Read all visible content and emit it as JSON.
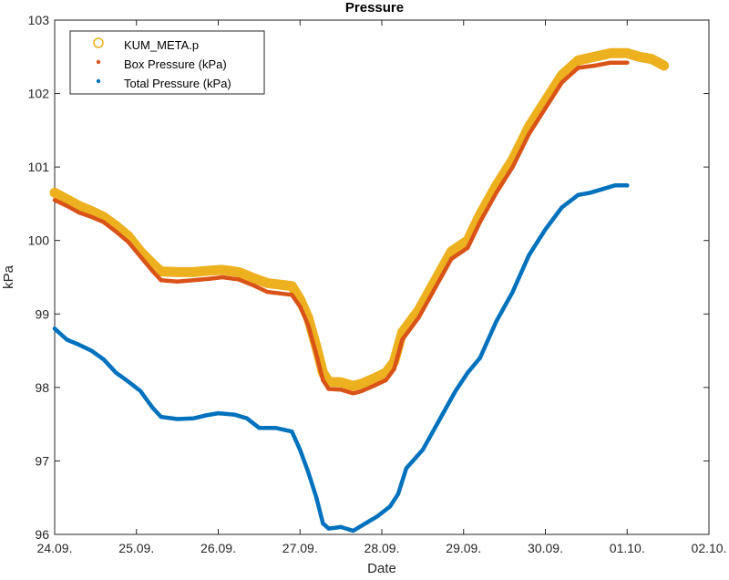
{
  "chart_data": {
    "type": "scatter",
    "title": "Pressure",
    "xlabel": "Date",
    "ylabel": "kPa",
    "x_ticks": [
      "24.09.",
      "25.09.",
      "26.09.",
      "27.09.",
      "28.09.",
      "29.09.",
      "30.09.",
      "01.10.",
      "02.10."
    ],
    "y_ticks": [
      "96",
      "97",
      "98",
      "99",
      "100",
      "101",
      "102",
      "103"
    ],
    "xlim": [
      0,
      8
    ],
    "ylim": [
      96,
      103
    ],
    "x_unit": "days since 24.09.",
    "grid": false,
    "legend_position": "top-left",
    "series": [
      {
        "name": "KUM_META.p",
        "marker": "open-circle",
        "color": "#EDB120",
        "points": [
          [
            0.0,
            100.65
          ],
          [
            0.15,
            100.56
          ],
          [
            0.3,
            100.47
          ],
          [
            0.45,
            100.4
          ],
          [
            0.6,
            100.32
          ],
          [
            0.75,
            100.2
          ],
          [
            0.9,
            100.06
          ],
          [
            1.05,
            99.85
          ],
          [
            1.2,
            99.68
          ],
          [
            1.3,
            99.58
          ],
          [
            1.5,
            99.57
          ],
          [
            1.7,
            99.57
          ],
          [
            1.9,
            99.59
          ],
          [
            2.05,
            99.6
          ],
          [
            2.25,
            99.57
          ],
          [
            2.45,
            99.48
          ],
          [
            2.6,
            99.42
          ],
          [
            2.75,
            99.4
          ],
          [
            2.9,
            99.38
          ],
          [
            3.0,
            99.2
          ],
          [
            3.1,
            98.95
          ],
          [
            3.2,
            98.55
          ],
          [
            3.28,
            98.2
          ],
          [
            3.35,
            98.08
          ],
          [
            3.5,
            98.07
          ],
          [
            3.65,
            98.02
          ],
          [
            3.75,
            98.05
          ],
          [
            3.9,
            98.12
          ],
          [
            4.05,
            98.2
          ],
          [
            4.15,
            98.35
          ],
          [
            4.25,
            98.75
          ],
          [
            4.45,
            99.05
          ],
          [
            4.65,
            99.45
          ],
          [
            4.85,
            99.85
          ],
          [
            5.05,
            100.0
          ],
          [
            5.2,
            100.35
          ],
          [
            5.4,
            100.75
          ],
          [
            5.6,
            101.1
          ],
          [
            5.8,
            101.55
          ],
          [
            6.0,
            101.9
          ],
          [
            6.2,
            102.25
          ],
          [
            6.4,
            102.45
          ],
          [
            6.6,
            102.5
          ],
          [
            6.8,
            102.55
          ],
          [
            7.0,
            102.55
          ],
          [
            7.15,
            102.5
          ],
          [
            7.3,
            102.47
          ],
          [
            7.45,
            102.38
          ]
        ]
      },
      {
        "name": "Box Pressure (kPa)",
        "marker": "dot",
        "color": "#D95319",
        "points": [
          [
            0.0,
            100.55
          ],
          [
            0.15,
            100.47
          ],
          [
            0.3,
            100.38
          ],
          [
            0.45,
            100.32
          ],
          [
            0.6,
            100.25
          ],
          [
            0.75,
            100.12
          ],
          [
            0.9,
            99.98
          ],
          [
            1.05,
            99.78
          ],
          [
            1.2,
            99.58
          ],
          [
            1.3,
            99.46
          ],
          [
            1.5,
            99.44
          ],
          [
            1.7,
            99.46
          ],
          [
            1.9,
            99.48
          ],
          [
            2.05,
            99.5
          ],
          [
            2.25,
            99.47
          ],
          [
            2.45,
            99.38
          ],
          [
            2.6,
            99.3
          ],
          [
            2.75,
            99.28
          ],
          [
            2.9,
            99.26
          ],
          [
            3.0,
            99.1
          ],
          [
            3.1,
            98.85
          ],
          [
            3.2,
            98.45
          ],
          [
            3.28,
            98.1
          ],
          [
            3.35,
            97.98
          ],
          [
            3.5,
            97.97
          ],
          [
            3.65,
            97.92
          ],
          [
            3.75,
            97.95
          ],
          [
            3.9,
            98.02
          ],
          [
            4.05,
            98.1
          ],
          [
            4.15,
            98.25
          ],
          [
            4.25,
            98.65
          ],
          [
            4.45,
            98.95
          ],
          [
            4.65,
            99.35
          ],
          [
            4.85,
            99.75
          ],
          [
            5.05,
            99.9
          ],
          [
            5.2,
            100.25
          ],
          [
            5.4,
            100.65
          ],
          [
            5.6,
            101.0
          ],
          [
            5.8,
            101.45
          ],
          [
            6.0,
            101.8
          ],
          [
            6.2,
            102.15
          ],
          [
            6.4,
            102.35
          ],
          [
            6.6,
            102.38
          ],
          [
            6.8,
            102.42
          ],
          [
            7.0,
            102.42
          ]
        ]
      },
      {
        "name": "Total Pressure (kPa)",
        "marker": "dot",
        "color": "#0072BD",
        "points": [
          [
            0.0,
            98.8
          ],
          [
            0.15,
            98.65
          ],
          [
            0.3,
            98.58
          ],
          [
            0.45,
            98.5
          ],
          [
            0.6,
            98.38
          ],
          [
            0.75,
            98.2
          ],
          [
            0.9,
            98.08
          ],
          [
            1.05,
            97.95
          ],
          [
            1.2,
            97.72
          ],
          [
            1.3,
            97.6
          ],
          [
            1.5,
            97.57
          ],
          [
            1.7,
            97.58
          ],
          [
            1.85,
            97.62
          ],
          [
            2.0,
            97.65
          ],
          [
            2.2,
            97.63
          ],
          [
            2.35,
            97.58
          ],
          [
            2.5,
            97.45
          ],
          [
            2.7,
            97.45
          ],
          [
            2.9,
            97.4
          ],
          [
            3.0,
            97.15
          ],
          [
            3.1,
            96.85
          ],
          [
            3.2,
            96.5
          ],
          [
            3.28,
            96.15
          ],
          [
            3.35,
            96.08
          ],
          [
            3.5,
            96.1
          ],
          [
            3.65,
            96.05
          ],
          [
            3.8,
            96.15
          ],
          [
            3.95,
            96.25
          ],
          [
            4.1,
            96.38
          ],
          [
            4.2,
            96.55
          ],
          [
            4.3,
            96.9
          ],
          [
            4.5,
            97.15
          ],
          [
            4.7,
            97.55
          ],
          [
            4.9,
            97.95
          ],
          [
            5.05,
            98.2
          ],
          [
            5.2,
            98.4
          ],
          [
            5.4,
            98.9
          ],
          [
            5.6,
            99.3
          ],
          [
            5.8,
            99.8
          ],
          [
            6.0,
            100.15
          ],
          [
            6.2,
            100.45
          ],
          [
            6.4,
            100.62
          ],
          [
            6.55,
            100.65
          ],
          [
            6.7,
            100.7
          ],
          [
            6.85,
            100.75
          ],
          [
            7.0,
            100.75
          ]
        ]
      }
    ]
  }
}
